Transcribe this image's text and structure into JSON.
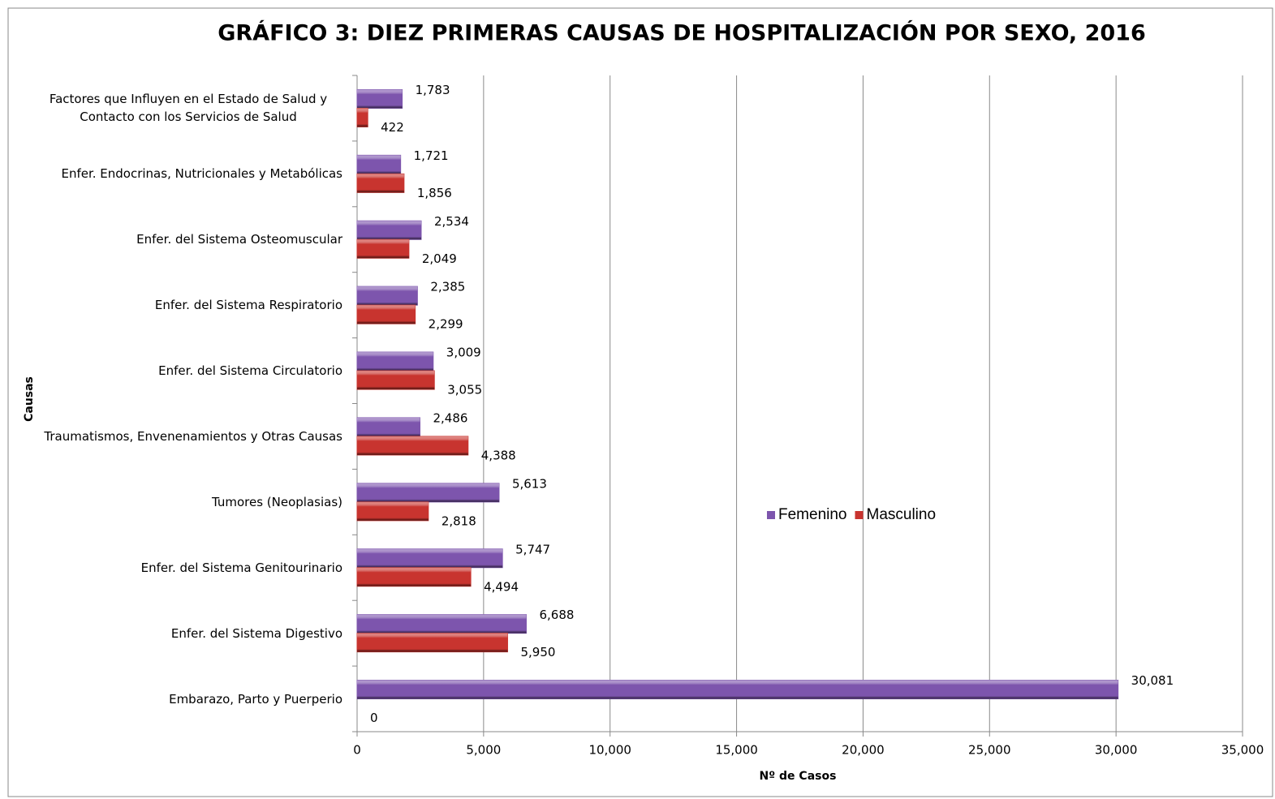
{
  "chart_data": {
    "type": "hbar",
    "title": "GRÁFICO 3: DIEZ PRIMERAS CAUSAS DE HOSPITALIZACIÓN POR SEXO, 2016",
    "x_label": "Nº de Casos",
    "y_label": "Causas",
    "categories": [
      "Factores que Influyen en el Estado de Salud y Contacto con los Servicios de Salud",
      "Enfer. Endocrinas, Nutricionales y Metabólicas",
      "Enfer. del Sistema Osteomuscular",
      "Enfer. del Sistema Respiratorio",
      "Enfer. del Sistema Circulatorio",
      "Traumatismos, Envenenamientos y Otras Causas",
      "Tumores (Neoplasias)",
      "Enfer. del Sistema Genitourinario",
      "Enfer. del Sistema Digestivo",
      "Embarazo, Parto y Puerperio"
    ],
    "series": [
      {
        "name": "Femenino",
        "color": "#7d55ad",
        "values": [
          1783,
          1721,
          2534,
          2385,
          3009,
          2486,
          5613,
          5747,
          6688,
          30081
        ],
        "value_labels": [
          "1,783",
          "1,721",
          "2,534",
          "2,385",
          "3,009",
          "2,486",
          "5,613",
          "5,747",
          "6,688",
          "30,081"
        ]
      },
      {
        "name": "Masculino",
        "color": "#c8342f",
        "values": [
          422,
          1856,
          2049,
          2299,
          3055,
          4388,
          2818,
          4494,
          5950,
          0
        ],
        "value_labels": [
          "422",
          "1,856",
          "2,049",
          "2,299",
          "3,055",
          "4,388",
          "2,818",
          "4,494",
          "5,950",
          "0"
        ]
      }
    ],
    "xlim": [
      0,
      35000
    ],
    "xticks": [
      0,
      {
        "value": 5000,
        "label": "5,000"
      },
      {
        "value": 10000,
        "label": "10,000"
      },
      {
        "value": 15000,
        "label": "15,000"
      },
      {
        "value": 20000,
        "label": "20,000"
      },
      {
        "value": 25000,
        "label": "25,000"
      },
      {
        "value": 30000,
        "label": "30,000"
      },
      {
        "value": 35000,
        "label": "35,000"
      }
    ],
    "grid": true,
    "legend": "center"
  }
}
